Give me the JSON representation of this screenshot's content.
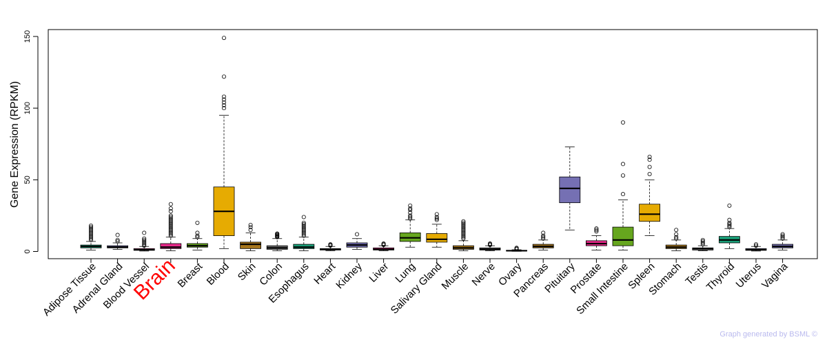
{
  "chart_data": {
    "type": "boxplot",
    "ylabel": "Gene Expression (RPKM)",
    "ylim": [
      -5,
      155
    ],
    "yticks": [
      0,
      50,
      100,
      150
    ],
    "highlight_category": "Brain",
    "highlight_color": "#ff0000",
    "categories": [
      {
        "name": "Adipose Tissue",
        "color": "#1a9e77",
        "whislo": 1,
        "q1": 2.5,
        "med": 3.5,
        "q3": 4.5,
        "whishi": 7,
        "outliers": [
          8,
          9,
          10,
          11,
          12,
          13,
          14,
          15,
          16,
          17,
          18
        ]
      },
      {
        "name": "Adrenal Gland",
        "color": "#7570b3",
        "whislo": 1.5,
        "q1": 2.5,
        "med": 3,
        "q3": 4,
        "whishi": 6,
        "outliers": [
          7,
          8,
          11.5
        ]
      },
      {
        "name": "Blood Vessel",
        "color": "#e7298a",
        "whislo": 0.3,
        "q1": 0.8,
        "med": 1.2,
        "q3": 2,
        "whishi": 3.5,
        "outliers": [
          4,
          5,
          6,
          7,
          8,
          9,
          13
        ]
      },
      {
        "name": "Brain",
        "color": "#e7298a",
        "whislo": 0.5,
        "q1": 2,
        "med": 3,
        "q3": 5.5,
        "whishi": 10,
        "outliers": [
          11,
          12,
          13,
          14,
          15,
          16,
          17,
          18,
          19,
          20,
          21,
          22,
          23,
          24,
          25,
          28,
          30,
          33
        ]
      },
      {
        "name": "Breast",
        "color": "#66a61e",
        "whislo": 1,
        "q1": 3,
        "med": 4,
        "q3": 5.5,
        "whishi": 9,
        "outliers": [
          10,
          11,
          13,
          20
        ]
      },
      {
        "name": "Blood",
        "color": "#e6ab02",
        "whislo": 2,
        "q1": 11,
        "med": 28,
        "q3": 45,
        "whishi": 95,
        "outliers": [
          100,
          102,
          104,
          106,
          108,
          122,
          149
        ]
      },
      {
        "name": "Skin",
        "color": "#a6761d",
        "whislo": 0.5,
        "q1": 2,
        "med": 5,
        "q3": 6.5,
        "whishi": 13,
        "outliers": [
          15,
          17,
          18.5
        ]
      },
      {
        "name": "Colon",
        "color": "#666666",
        "whislo": 0.5,
        "q1": 1.5,
        "med": 2.5,
        "q3": 4,
        "whishi": 9,
        "outliers": [
          10,
          10.5,
          11,
          11.5,
          12,
          12.5
        ]
      },
      {
        "name": "Esophagus",
        "color": "#1a9e77",
        "whislo": 0.5,
        "q1": 2,
        "med": 3,
        "q3": 5,
        "whishi": 10,
        "outliers": [
          11,
          12,
          13,
          14,
          15,
          16,
          17,
          18,
          19,
          20,
          24
        ]
      },
      {
        "name": "Heart",
        "color": "#7570b3",
        "whislo": 0.5,
        "q1": 1,
        "med": 1.5,
        "q3": 2,
        "whishi": 3.5,
        "outliers": [
          4,
          4.5,
          5
        ]
      },
      {
        "name": "Kidney",
        "color": "#7570b3",
        "whislo": 1.5,
        "q1": 3,
        "med": 4.5,
        "q3": 6,
        "whishi": 9,
        "outliers": [
          12
        ]
      },
      {
        "name": "Liver",
        "color": "#e7298a",
        "whislo": 0.5,
        "q1": 1,
        "med": 1.5,
        "q3": 2.5,
        "whishi": 4,
        "outliers": [
          4.5,
          5,
          5.5
        ]
      },
      {
        "name": "Lung",
        "color": "#66a61e",
        "whislo": 3,
        "q1": 7,
        "med": 9.5,
        "q3": 13,
        "whishi": 22,
        "outliers": [
          23,
          24,
          25,
          27,
          29,
          30,
          32
        ]
      },
      {
        "name": "Salivary Gland",
        "color": "#e6ab02",
        "whislo": 3,
        "q1": 6.5,
        "med": 8.5,
        "q3": 12.5,
        "whishi": 19,
        "outliers": [
          22,
          23,
          24,
          26
        ]
      },
      {
        "name": "Muscle",
        "color": "#a6761d",
        "whislo": 0.5,
        "q1": 1.5,
        "med": 2.5,
        "q3": 4,
        "whishi": 7.5,
        "outliers": [
          9,
          10,
          11,
          12,
          13,
          14,
          15,
          16,
          17,
          18,
          19,
          20,
          21
        ]
      },
      {
        "name": "Nerve",
        "color": "#666666",
        "whislo": 0.5,
        "q1": 1,
        "med": 1.5,
        "q3": 2.5,
        "whishi": 4,
        "outliers": [
          4.5,
          5,
          5.5
        ]
      },
      {
        "name": "Ovary",
        "color": "#1a9e77",
        "whislo": 0.1,
        "q1": 0.3,
        "med": 0.5,
        "q3": 0.8,
        "whishi": 1.2,
        "outliers": [
          1.5,
          2,
          2.5
        ]
      },
      {
        "name": "Pancreas",
        "color": "#a6761d",
        "whislo": 1,
        "q1": 2.5,
        "med": 3.5,
        "q3": 5,
        "whishi": 8,
        "outliers": [
          9,
          10,
          11,
          13
        ]
      },
      {
        "name": "Pituitary",
        "color": "#7570b3",
        "whislo": 15,
        "q1": 34,
        "med": 44,
        "q3": 52,
        "whishi": 73,
        "outliers": []
      },
      {
        "name": "Prostate",
        "color": "#e7298a",
        "whislo": 1,
        "q1": 4,
        "med": 5.5,
        "q3": 7.5,
        "whishi": 11,
        "outliers": [
          14,
          15,
          16
        ]
      },
      {
        "name": "Small Intestine",
        "color": "#66a61e",
        "whislo": 1,
        "q1": 4,
        "med": 8,
        "q3": 17,
        "whishi": 36,
        "outliers": [
          40,
          53,
          61,
          90
        ]
      },
      {
        "name": "Spleen",
        "color": "#e6ab02",
        "whislo": 11,
        "q1": 21,
        "med": 26,
        "q3": 33,
        "whishi": 50,
        "outliers": [
          54,
          59,
          64,
          66
        ]
      },
      {
        "name": "Stomach",
        "color": "#a6761d",
        "whislo": 0.5,
        "q1": 2,
        "med": 3,
        "q3": 4.5,
        "whishi": 8,
        "outliers": [
          9,
          10,
          12,
          15
        ]
      },
      {
        "name": "Testis",
        "color": "#666666",
        "whislo": 0.5,
        "q1": 1,
        "med": 2,
        "q3": 2.5,
        "whishi": 4,
        "outliers": [
          5,
          6,
          7,
          8
        ]
      },
      {
        "name": "Thyroid",
        "color": "#1a9e77",
        "whislo": 2,
        "q1": 6,
        "med": 8,
        "q3": 10.5,
        "whishi": 16,
        "outliers": [
          17,
          18,
          19,
          20,
          22,
          32
        ]
      },
      {
        "name": "Uterus",
        "color": "#7570b3",
        "whislo": 0.3,
        "q1": 0.8,
        "med": 1.2,
        "q3": 2,
        "whishi": 3.5,
        "outliers": [
          4,
          5
        ]
      },
      {
        "name": "Vagina",
        "color": "#7570b3",
        "whislo": 1,
        "q1": 2.5,
        "med": 3.5,
        "q3": 5,
        "whishi": 8,
        "outliers": [
          9,
          10,
          11,
          12
        ]
      }
    ]
  },
  "footer": {
    "credit": "Graph generated by BSML ©",
    "credit_color": "#b9b9ee"
  }
}
